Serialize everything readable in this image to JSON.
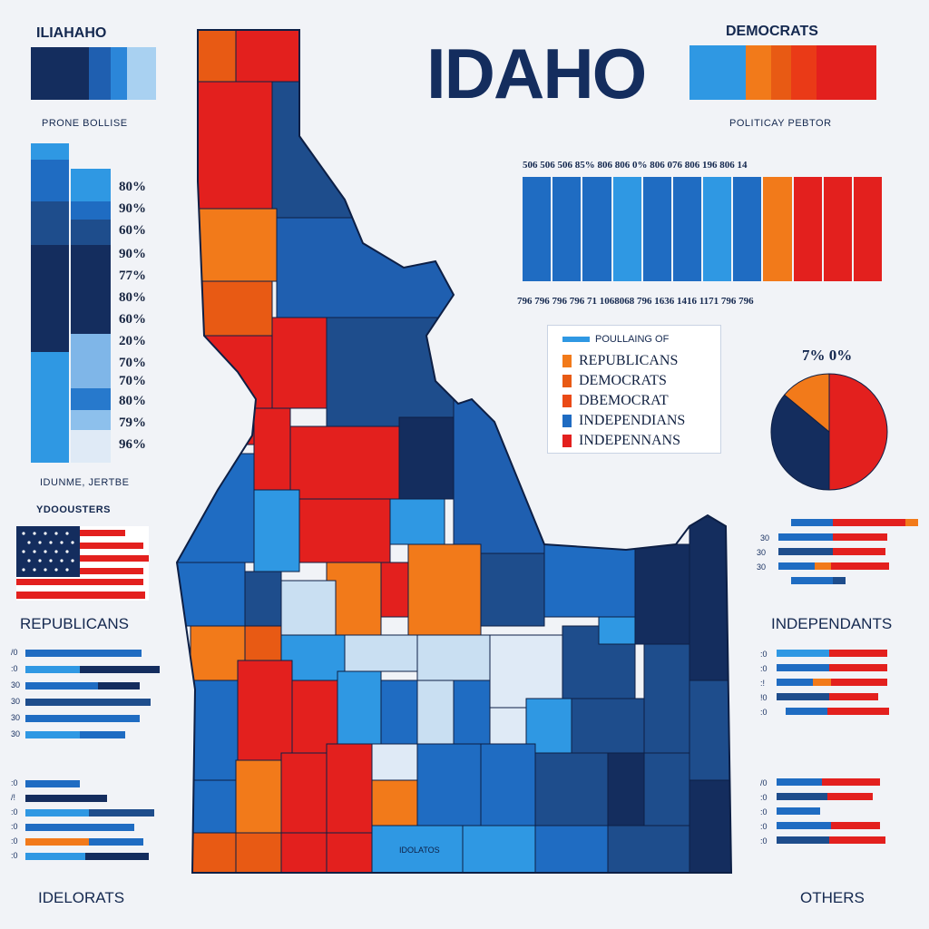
{
  "colors": {
    "navy": "#142d5e",
    "dark_blue": "#1e4d8c",
    "mid_blue": "#1f6cc2",
    "light_blue": "#2f98e3",
    "pale_blue": "#c9dff2",
    "orange": "#f27a1a",
    "dark_orange": "#e85a14",
    "red": "#e3201e",
    "background": "#f1f3f7"
  },
  "header": {
    "title": "IDAHO",
    "top_left_label": "ILIAHAHO",
    "top_right_label": "DEMOCRATS",
    "left_subtitle": "PRONE BOLLISE",
    "right_subtitle": "POLITICAY PEBTOR"
  },
  "left_stacked": {
    "percent_labels": [
      "80%",
      "90%",
      "60%",
      "90%",
      "77%",
      "80%",
      "60%",
      "20%",
      "70%",
      "70%",
      "80%",
      "79%",
      "96%"
    ],
    "bottom_label": "IDUNME, JERTBE"
  },
  "flag_label": "YDOOUSTERS",
  "sections": {
    "left_top": "REPUBLICANS",
    "left_bottom": "IDELORATS",
    "right_top": "INDEPENDANTS",
    "right_bottom": "OTHERS"
  },
  "right_bar_chart": {
    "top_labels": "506 506 506 85% 806 806 0% 806 076 806 196 806 14",
    "bottom_labels": "796 796 796 796 71 1068068 796 1636 1416 1171 796 796"
  },
  "legend": {
    "title": "POULLAING OF",
    "items": [
      "REPUBLICANS",
      "DEMOCRATS",
      "DBEMOCRAT",
      "INDEPENDIANS",
      "INDEPENNANS"
    ]
  },
  "pie": {
    "label": "7% 0%",
    "slices": [
      {
        "name": "red",
        "value": 50
      },
      {
        "name": "navy",
        "value": 36
      },
      {
        "name": "orange",
        "value": 14
      }
    ]
  },
  "map": {
    "region_label": "IDOLATOS"
  }
}
